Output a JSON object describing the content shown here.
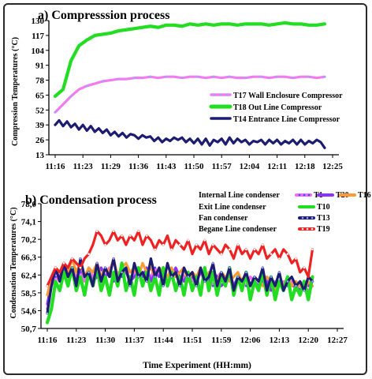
{
  "chart_data": [
    {
      "type": "line",
      "title": "a) Compresssion process",
      "xlabel": "",
      "ylabel": "Compression Temperatures (°C)",
      "x_ticks": [
        "11:16",
        "11:23",
        "11:29",
        "11:36",
        "11:43",
        "11:50",
        "11:57",
        "12:04",
        "12:11",
        "12:18",
        "12:25"
      ],
      "y_ticks": [
        "13",
        "26",
        "39",
        "52",
        "65",
        "78",
        "91",
        "104",
        "117",
        "130"
      ],
      "ylim": [
        13,
        130
      ],
      "x_range_minutes": [
        0,
        70
      ],
      "grid": false,
      "legend_position": "right",
      "series": [
        {
          "name": "T17 Wall Enclosure  Compressor",
          "color": "#f07cf0",
          "marker_color": "#9aa4ff",
          "x": [
            0,
            2,
            4,
            6,
            8,
            10,
            12,
            14,
            16,
            18,
            20,
            22,
            24,
            26,
            28,
            30,
            32,
            34,
            36,
            38,
            40,
            42,
            44,
            46,
            48,
            50,
            52,
            54,
            56,
            58,
            60,
            62,
            64,
            66,
            68
          ],
          "y": [
            50,
            57,
            64,
            70,
            73,
            75,
            77,
            78,
            79,
            79,
            80,
            80,
            81,
            80,
            81,
            81,
            80,
            81,
            81,
            80,
            81,
            80,
            81,
            80,
            80,
            81,
            81,
            80,
            81,
            81,
            80,
            81,
            81,
            80,
            81
          ]
        },
        {
          "name": "T18 Out Line Compressor",
          "color": "#22dd22",
          "x": [
            0,
            2,
            4,
            6,
            8,
            10,
            12,
            14,
            16,
            18,
            20,
            22,
            24,
            26,
            28,
            30,
            32,
            34,
            36,
            38,
            40,
            42,
            44,
            46,
            48,
            50,
            52,
            54,
            56,
            58,
            60,
            62,
            64,
            66,
            68
          ],
          "y": [
            64,
            70,
            95,
            108,
            113,
            117,
            118,
            119,
            121,
            122,
            123,
            124,
            125,
            124,
            126,
            126,
            125,
            127,
            126,
            127,
            126,
            127,
            127,
            126,
            127,
            127,
            127,
            126,
            127,
            128,
            127,
            127,
            126,
            126,
            127
          ]
        },
        {
          "name": "T14 Entrance Line  Compressor",
          "color": "#1c1c70",
          "x": [
            0,
            1,
            2,
            3,
            4,
            5,
            6,
            7,
            8,
            9,
            10,
            11,
            12,
            13,
            14,
            15,
            16,
            17,
            18,
            19,
            20,
            21,
            22,
            23,
            24,
            25,
            26,
            27,
            28,
            29,
            30,
            31,
            32,
            33,
            34,
            35,
            36,
            37,
            38,
            39,
            40,
            41,
            42,
            43,
            44,
            45,
            46,
            47,
            48,
            49,
            50,
            51,
            52,
            53,
            54,
            55,
            56,
            57,
            58,
            59,
            60,
            61,
            62,
            63,
            64,
            65,
            66,
            67,
            68
          ],
          "y": [
            39,
            43,
            38,
            42,
            37,
            40,
            35,
            39,
            34,
            38,
            33,
            36,
            32,
            35,
            30,
            33,
            29,
            32,
            28,
            31,
            30,
            27,
            30,
            28,
            29,
            25,
            28,
            24,
            27,
            25,
            28,
            26,
            28,
            24,
            27,
            23,
            27,
            22,
            27,
            21,
            26,
            24,
            27,
            22,
            28,
            23,
            27,
            24,
            26,
            22,
            25,
            24,
            26,
            22,
            26,
            23,
            26,
            22,
            25,
            23,
            26,
            22,
            26,
            22,
            25,
            23,
            26,
            24,
            19
          ]
        }
      ]
    },
    {
      "type": "line",
      "title": "b) Condensation process",
      "xlabel": "Time Experiment (HH:mm)",
      "ylabel": "Condensation Temperatures (°C)",
      "x_ticks": [
        "11:16",
        "11:23",
        "11:30",
        "11:37",
        "11:44",
        "11:51",
        "11:59",
        "12:06",
        "12:13",
        "12:20",
        "12:27"
      ],
      "y_ticks": [
        "50,7",
        "54,6",
        "58,5",
        "62,4",
        "66,3",
        "70,2",
        "74,1",
        "78,0"
      ],
      "ylim": [
        50.7,
        78.0
      ],
      "x_range_minutes": [
        0,
        70
      ],
      "grid": false,
      "legend_position": "top-right",
      "series": [
        {
          "name": "T1",
          "label": "Internal Line condenser",
          "color": "#ff66ff",
          "marker_color": "#3355ff",
          "x": [
            0,
            1,
            2,
            3,
            4,
            5,
            6,
            7,
            8,
            9,
            10,
            11,
            12,
            13,
            14,
            15,
            16,
            17,
            18,
            19,
            20,
            21,
            22,
            23,
            24,
            25,
            26,
            27,
            28,
            29,
            30,
            31,
            32,
            33,
            34,
            35,
            36,
            37,
            38,
            39,
            40,
            41,
            42,
            43,
            44,
            45,
            46,
            47,
            48,
            49,
            50,
            51,
            52,
            53,
            54,
            55,
            56,
            57,
            58,
            59,
            60,
            61,
            62,
            63,
            64
          ],
          "y": [
            55,
            60,
            62,
            61,
            63,
            62,
            64,
            62,
            63,
            61,
            64,
            62,
            63,
            61,
            62,
            64,
            61,
            63,
            62,
            64,
            61,
            63,
            62,
            63,
            61,
            62,
            64,
            62,
            63,
            61,
            62,
            63,
            61,
            62,
            63,
            61,
            62,
            63,
            61,
            62,
            60,
            62,
            63,
            61,
            62,
            60,
            62,
            61,
            60,
            62,
            61,
            60,
            61,
            62,
            60,
            61,
            60,
            61,
            60,
            61,
            59,
            61,
            60,
            59,
            60
          ]
        },
        {
          "name": "T20",
          "color": "#8833ff",
          "x": [
            0,
            1,
            2,
            3,
            4,
            5,
            6,
            7,
            8,
            9,
            10,
            11,
            12,
            13,
            14,
            15,
            16,
            17,
            18,
            19,
            20,
            21,
            22,
            23,
            24,
            25,
            26,
            27,
            28,
            29,
            30,
            31,
            32,
            33,
            34,
            35,
            36,
            37,
            38,
            39,
            40,
            41,
            42,
            43,
            44,
            45,
            46,
            47,
            48,
            49,
            50,
            51,
            52,
            53,
            54,
            55,
            56,
            57,
            58,
            59,
            60,
            61,
            62,
            63,
            64
          ],
          "y": [
            56,
            61,
            63,
            62,
            64,
            62,
            63,
            61,
            64,
            62,
            63,
            61,
            62,
            64,
            62,
            63,
            61,
            62,
            64,
            63,
            61,
            62,
            63,
            62,
            64,
            61,
            63,
            62,
            63,
            61,
            62,
            64,
            62,
            61,
            63,
            62,
            61,
            63,
            62,
            61,
            63,
            62,
            60,
            61,
            63,
            60,
            62,
            61,
            62,
            60,
            61,
            60,
            62,
            61,
            59,
            60,
            61,
            59,
            61,
            60,
            60,
            59,
            61,
            60,
            61
          ]
        },
        {
          "name": "T16",
          "color": "#ff9933",
          "x": [
            0,
            1,
            2,
            3,
            4,
            5,
            6,
            7,
            8,
            9,
            10,
            11,
            12,
            13,
            14,
            15,
            16,
            17,
            18,
            19,
            20,
            21,
            22,
            23,
            24,
            25,
            26,
            27,
            28,
            29,
            30,
            31,
            32,
            33,
            34,
            35,
            36,
            37,
            38,
            39,
            40,
            41,
            42,
            43,
            44,
            45,
            46,
            47,
            48,
            49,
            50,
            51,
            52,
            53,
            54,
            55,
            56,
            57,
            58,
            59,
            60,
            61,
            62,
            63,
            64
          ],
          "y": [
            58,
            62,
            64,
            63,
            65,
            63,
            66,
            63,
            65,
            62,
            64,
            63,
            65,
            62,
            64,
            63,
            66,
            62,
            64,
            65,
            63,
            64,
            62,
            65,
            63,
            64,
            62,
            64,
            63,
            62,
            64,
            62,
            63,
            64,
            61,
            63,
            62,
            64,
            61,
            63,
            62,
            61,
            63,
            62,
            61,
            62,
            63,
            61,
            62,
            60,
            62,
            61,
            60,
            62,
            61,
            59,
            61,
            60,
            62,
            60,
            61,
            60,
            59,
            61,
            60
          ]
        },
        {
          "name": "T10",
          "label": "Exit Line condenser",
          "color": "#22dd22",
          "x": [
            0,
            1,
            2,
            3,
            4,
            5,
            6,
            7,
            8,
            9,
            10,
            11,
            12,
            13,
            14,
            15,
            16,
            17,
            18,
            19,
            20,
            21,
            22,
            23,
            24,
            25,
            26,
            27,
            28,
            29,
            30,
            31,
            32,
            33,
            34,
            35,
            36,
            37,
            38,
            39,
            40,
            41,
            42,
            43,
            44,
            45,
            46,
            47,
            48,
            49,
            50,
            51,
            52,
            53,
            54,
            55,
            56,
            57,
            58,
            59,
            60,
            61,
            62,
            63,
            64
          ],
          "y": [
            52,
            55,
            61,
            59,
            63,
            60,
            64,
            59,
            62,
            58,
            63,
            60,
            64,
            59,
            62,
            58,
            63,
            60,
            65,
            59,
            62,
            58,
            64,
            60,
            63,
            59,
            62,
            58,
            64,
            60,
            63,
            59,
            62,
            58,
            63,
            59,
            62,
            58,
            64,
            59,
            63,
            58,
            62,
            60,
            64,
            58,
            62,
            59,
            63,
            57,
            61,
            59,
            63,
            58,
            62,
            57,
            61,
            59,
            62,
            57,
            60,
            58,
            61,
            57,
            62
          ]
        },
        {
          "name": "T13",
          "label": "Fan condenser",
          "color": "#1c1c70",
          "marker_color": "#9aa4ff",
          "x": [
            0,
            1,
            2,
            3,
            4,
            5,
            6,
            7,
            8,
            9,
            10,
            11,
            12,
            13,
            14,
            15,
            16,
            17,
            18,
            19,
            20,
            21,
            22,
            23,
            24,
            25,
            26,
            27,
            28,
            29,
            30,
            31,
            32,
            33,
            34,
            35,
            36,
            37,
            38,
            39,
            40,
            41,
            42,
            43,
            44,
            45,
            46,
            47,
            48,
            49,
            50,
            51,
            52,
            53,
            54,
            55,
            56,
            57,
            58,
            59,
            60,
            61,
            62,
            63,
            64
          ],
          "y": [
            54,
            60,
            64,
            61,
            65,
            62,
            64,
            60,
            66,
            62,
            63,
            60,
            65,
            61,
            64,
            62,
            66,
            61,
            63,
            64,
            60,
            65,
            62,
            63,
            61,
            66,
            62,
            64,
            60,
            65,
            62,
            63,
            60,
            64,
            62,
            63,
            60,
            64,
            61,
            62,
            65,
            60,
            63,
            61,
            64,
            59,
            62,
            61,
            63,
            60,
            62,
            61,
            64,
            59,
            62,
            60,
            63,
            59,
            61,
            62,
            60,
            61,
            59,
            62,
            61
          ]
        },
        {
          "name": "T19",
          "label": "Begane Line condenser",
          "color": "#ee2222",
          "marker_color": "#ffffff",
          "x": [
            0,
            1,
            2,
            3,
            4,
            5,
            6,
            7,
            8,
            9,
            10,
            11,
            12,
            13,
            14,
            15,
            16,
            17,
            18,
            19,
            20,
            21,
            22,
            23,
            24,
            25,
            26,
            27,
            28,
            29,
            30,
            31,
            32,
            33,
            34,
            35,
            36,
            37,
            38,
            39,
            40,
            41,
            42,
            43,
            44,
            45,
            46,
            47,
            48,
            49,
            50,
            51,
            52,
            53,
            54,
            55,
            56,
            57,
            58,
            59,
            60,
            61,
            62,
            63,
            64
          ],
          "y": [
            60,
            62,
            64,
            63,
            65,
            64,
            66,
            65,
            64,
            66,
            67,
            69,
            72,
            71,
            69,
            70,
            72,
            70,
            71,
            69,
            71,
            70,
            72,
            69,
            71,
            70,
            68,
            70,
            69,
            71,
            68,
            70,
            69,
            68,
            70,
            67,
            69,
            68,
            70,
            67,
            69,
            68,
            67,
            69,
            68,
            66,
            69,
            67,
            68,
            66,
            68,
            67,
            69,
            66,
            67,
            68,
            66,
            68,
            67,
            65,
            66,
            63,
            64,
            62,
            68
          ]
        }
      ]
    }
  ]
}
